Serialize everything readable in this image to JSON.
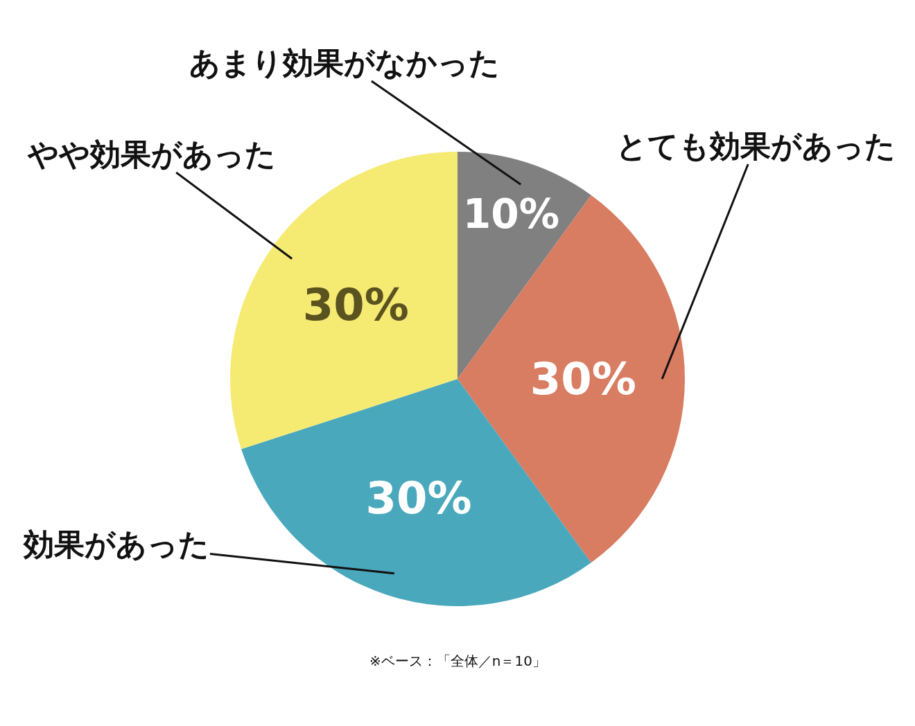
{
  "chart_data": {
    "type": "pie",
    "categories": [
      "あまり効果がなかった",
      "とても効果があった",
      "効果があった",
      "やや効果があった"
    ],
    "values": [
      10,
      30,
      30,
      30
    ],
    "colors": [
      "#808080",
      "#d87c62",
      "#4aa8bc",
      "#f5ea72"
    ],
    "value_labels": [
      "10%",
      "30%",
      "30%",
      "30%"
    ],
    "annotations": [
      "※ベース：「全体／n＝10」"
    ],
    "legend": false
  }
}
